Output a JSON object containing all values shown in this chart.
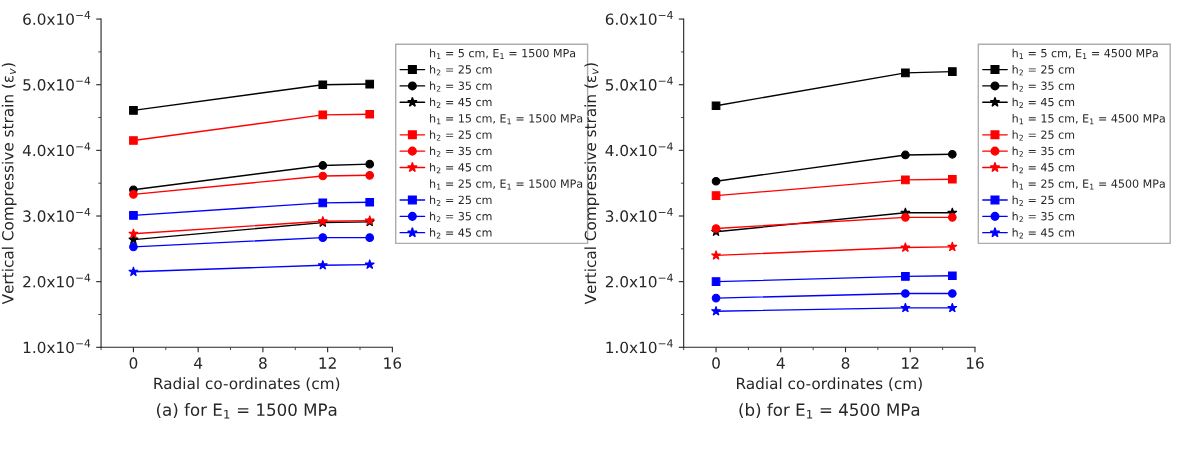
{
  "chart_data": [
    {
      "type": "line",
      "title": "(a) for E$_{1}$ = 1500 MPa",
      "xlabel": "Radial co-ordinates (cm)",
      "ylabel": "Vertical Compressive strain (ε$_{v}$)",
      "x": [
        0,
        11.7,
        14.6
      ],
      "xlim": [
        -2,
        16
      ],
      "xticks": [
        0,
        4,
        8,
        12,
        16
      ],
      "ylim": [
        0.0001,
        0.0006
      ],
      "yticks": [
        {
          "value": 0.0001,
          "label": "1.0x10$^{−4}$"
        },
        {
          "value": 0.0002,
          "label": "2.0x10$^{−4}$"
        },
        {
          "value": 0.0003,
          "label": "3.0x10$^{−4}$"
        },
        {
          "value": 0.0004,
          "label": "4.0x10$^{−4}$"
        },
        {
          "value": 0.0005,
          "label": "5.0x10$^{−4}$"
        },
        {
          "value": 0.0006,
          "label": "6.0x10$^{−4}$"
        }
      ],
      "grid": false,
      "legend": "right",
      "line_style": "solid",
      "annotations": [
        "h$_{1}$ = 5 cm, E$_{1}$ = 1500 MPa",
        "h$_{1}$ = 15 cm, E$_{1}$ = 1500 MPa",
        "h$_{1}$ = 25 cm, E$_{1}$ = 1500 MPa"
      ],
      "series": [
        {
          "name": "h$_{2}$ = 25 cm",
          "color": "#000000",
          "marker": "square",
          "values": [
            0.000461,
            0.0005,
            0.000501
          ]
        },
        {
          "name": "h$_{2}$ = 35 cm",
          "color": "#000000",
          "marker": "circle",
          "values": [
            0.00034,
            0.000377,
            0.000379
          ]
        },
        {
          "name": "h$_{2}$ = 45 cm",
          "color": "#000000",
          "marker": "star",
          "values": [
            0.000264,
            0.00029,
            0.000291
          ]
        },
        {
          "name": "h$_{2}$ = 25 cm",
          "color": "#ff0000",
          "marker": "square",
          "values": [
            0.000415,
            0.000454,
            0.000455
          ]
        },
        {
          "name": "h$_{2}$ = 35 cm",
          "color": "#ff0000",
          "marker": "circle",
          "values": [
            0.000333,
            0.000361,
            0.000362
          ]
        },
        {
          "name": "h$_{2}$ = 45 cm",
          "color": "#ff0000",
          "marker": "star",
          "values": [
            0.000273,
            0.000292,
            0.000293
          ]
        },
        {
          "name": "h$_{2}$ = 25 cm",
          "color": "#0000ff",
          "marker": "square",
          "values": [
            0.000301,
            0.00032,
            0.000321
          ]
        },
        {
          "name": "h$_{2}$ = 35 cm",
          "color": "#0000ff",
          "marker": "circle",
          "values": [
            0.000253,
            0.000267,
            0.000267
          ]
        },
        {
          "name": "h$_{2}$ = 45 cm",
          "color": "#0000ff",
          "marker": "star",
          "values": [
            0.000215,
            0.000225,
            0.000226
          ]
        }
      ]
    },
    {
      "type": "line",
      "title": "(b) for E$_{1}$ = 4500 MPa",
      "xlabel": "Radial co-ordinates (cm)",
      "ylabel": "Vertical Compressive strain (ε$_{v}$)",
      "x": [
        0,
        11.7,
        14.6
      ],
      "xlim": [
        -2,
        16
      ],
      "xticks": [
        0,
        4,
        8,
        12,
        16
      ],
      "ylim": [
        0.0001,
        0.0006
      ],
      "yticks": [
        {
          "value": 0.0001,
          "label": "1.0x10$^{−4}$"
        },
        {
          "value": 0.0002,
          "label": "2.0x10$^{−4}$"
        },
        {
          "value": 0.0003,
          "label": "3.0x10$^{−4}$"
        },
        {
          "value": 0.0004,
          "label": "4.0x10$^{−4}$"
        },
        {
          "value": 0.0005,
          "label": "5.0x10$^{−4}$"
        },
        {
          "value": 0.0006,
          "label": "6.0x10$^{−4}$"
        }
      ],
      "grid": false,
      "legend": "right",
      "line_style": "solid",
      "annotations": [
        "h$_{1}$ = 5 cm, E$_{1}$ = 4500 MPa",
        "h$_{1}$ = 15 cm, E$_{1}$ = 4500 MPa",
        "h$_{1}$ = 25 cm, E$_{1}$ = 4500 MPa"
      ],
      "series": [
        {
          "name": "h$_{2}$ = 25 cm",
          "color": "#000000",
          "marker": "square",
          "values": [
            0.000468,
            0.000518,
            0.00052
          ]
        },
        {
          "name": "h$_{2}$ = 35 cm",
          "color": "#000000",
          "marker": "circle",
          "values": [
            0.000353,
            0.000393,
            0.000394
          ]
        },
        {
          "name": "h$_{2}$ = 45 cm",
          "color": "#000000",
          "marker": "star",
          "values": [
            0.000276,
            0.000305,
            0.000305
          ]
        },
        {
          "name": "h$_{2}$ = 25 cm",
          "color": "#ff0000",
          "marker": "square",
          "values": [
            0.000331,
            0.000355,
            0.000356
          ]
        },
        {
          "name": "h$_{2}$ = 35 cm",
          "color": "#ff0000",
          "marker": "circle",
          "values": [
            0.000281,
            0.000298,
            0.000298
          ]
        },
        {
          "name": "h$_{2}$ = 45 cm",
          "color": "#ff0000",
          "marker": "star",
          "values": [
            0.00024,
            0.000252,
            0.000253
          ]
        },
        {
          "name": "h$_{2}$ = 25 cm",
          "color": "#0000ff",
          "marker": "square",
          "values": [
            0.0002,
            0.000208,
            0.000209
          ]
        },
        {
          "name": "h$_{2}$ = 35 cm",
          "color": "#0000ff",
          "marker": "circle",
          "values": [
            0.000175,
            0.000182,
            0.000182
          ]
        },
        {
          "name": "h$_{2}$ = 45 cm",
          "color": "#0000ff",
          "marker": "star",
          "values": [
            0.000155,
            0.00016,
            0.00016
          ]
        }
      ]
    }
  ]
}
